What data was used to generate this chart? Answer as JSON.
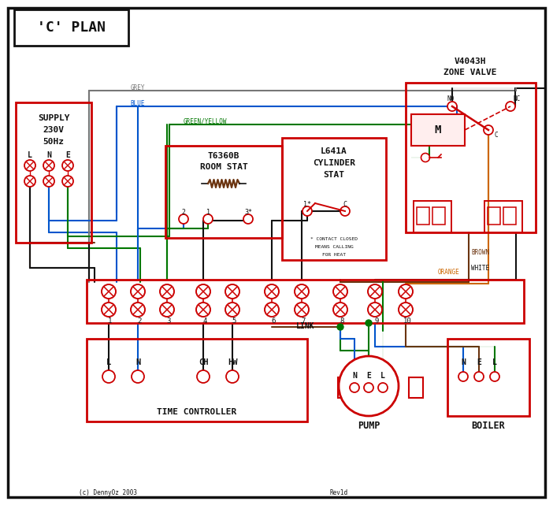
{
  "bg": "#ffffff",
  "red": "#cc0000",
  "blue": "#0055cc",
  "green": "#007700",
  "grey": "#777777",
  "brown": "#6B3410",
  "orange": "#cc6600",
  "black": "#111111",
  "title": "'C' PLAN",
  "supply_text": [
    "SUPPLY",
    "230V",
    "50Hz"
  ],
  "lne": [
    "L",
    "N",
    "E"
  ],
  "term_nums": [
    "1",
    "2",
    "3",
    "4",
    "5",
    "6",
    "7",
    "8",
    "9",
    "10"
  ],
  "zv_title": [
    "V4043H",
    "ZONE VALVE"
  ],
  "rs_title": [
    "T6360B",
    "ROOM STAT"
  ],
  "cs_title": [
    "L641A",
    "CYLINDER",
    "STAT"
  ],
  "tc_label": "TIME CONTROLLER",
  "pump_label": "PUMP",
  "boiler_label": "BOILER",
  "link_label": "LINK",
  "grey_label": "GREY",
  "blue_label": "BLUE",
  "gy_label": "GREEN/YELLOW",
  "brown_label": "BROWN",
  "white_label": "WHITE",
  "orange_label": "ORANGE",
  "no_label": "NO",
  "nc_label": "NC",
  "c_label": "C",
  "m_label": "M",
  "contact_note": [
    "* CONTACT CLOSED",
    "MEANS CALLING",
    "FOR HEAT"
  ],
  "copyright": "(c) DennyOz 2003",
  "rev": "Rev1d"
}
